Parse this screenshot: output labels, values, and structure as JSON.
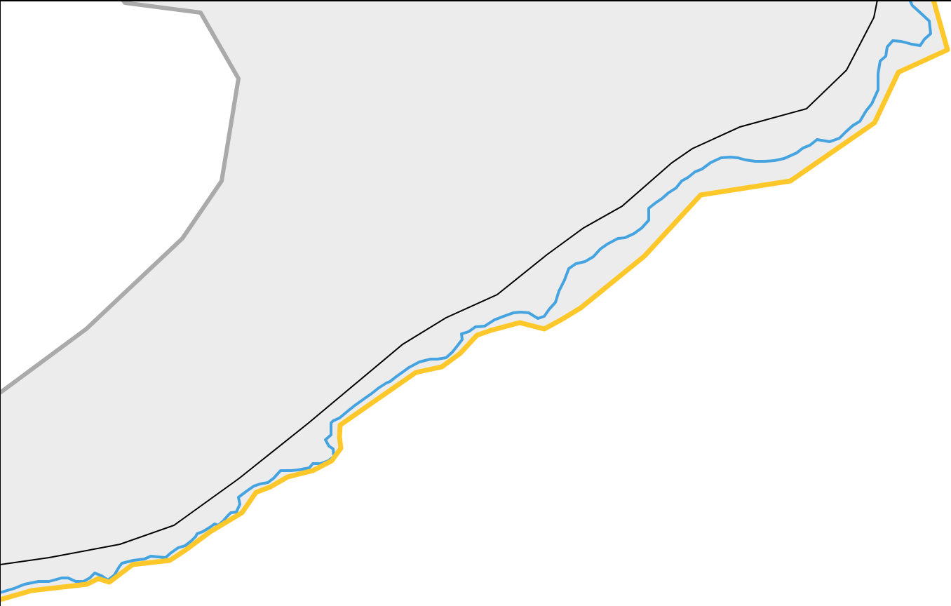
{
  "map": {
    "colors": {
      "land": "#ececec",
      "water": "#ffffff",
      "admin_boundary": "#aaaaaa",
      "outline": "#000000",
      "coastline": "#45a3e0",
      "highlight_boundary": "#ffc82a"
    },
    "layers": [
      {
        "name": "land-area",
        "kind": "fill"
      },
      {
        "name": "admin-boundary-line",
        "kind": "line"
      },
      {
        "name": "outline-line",
        "kind": "line"
      },
      {
        "name": "coastline-line",
        "kind": "line"
      },
      {
        "name": "highlight-boundary-line",
        "kind": "line"
      }
    ]
  }
}
